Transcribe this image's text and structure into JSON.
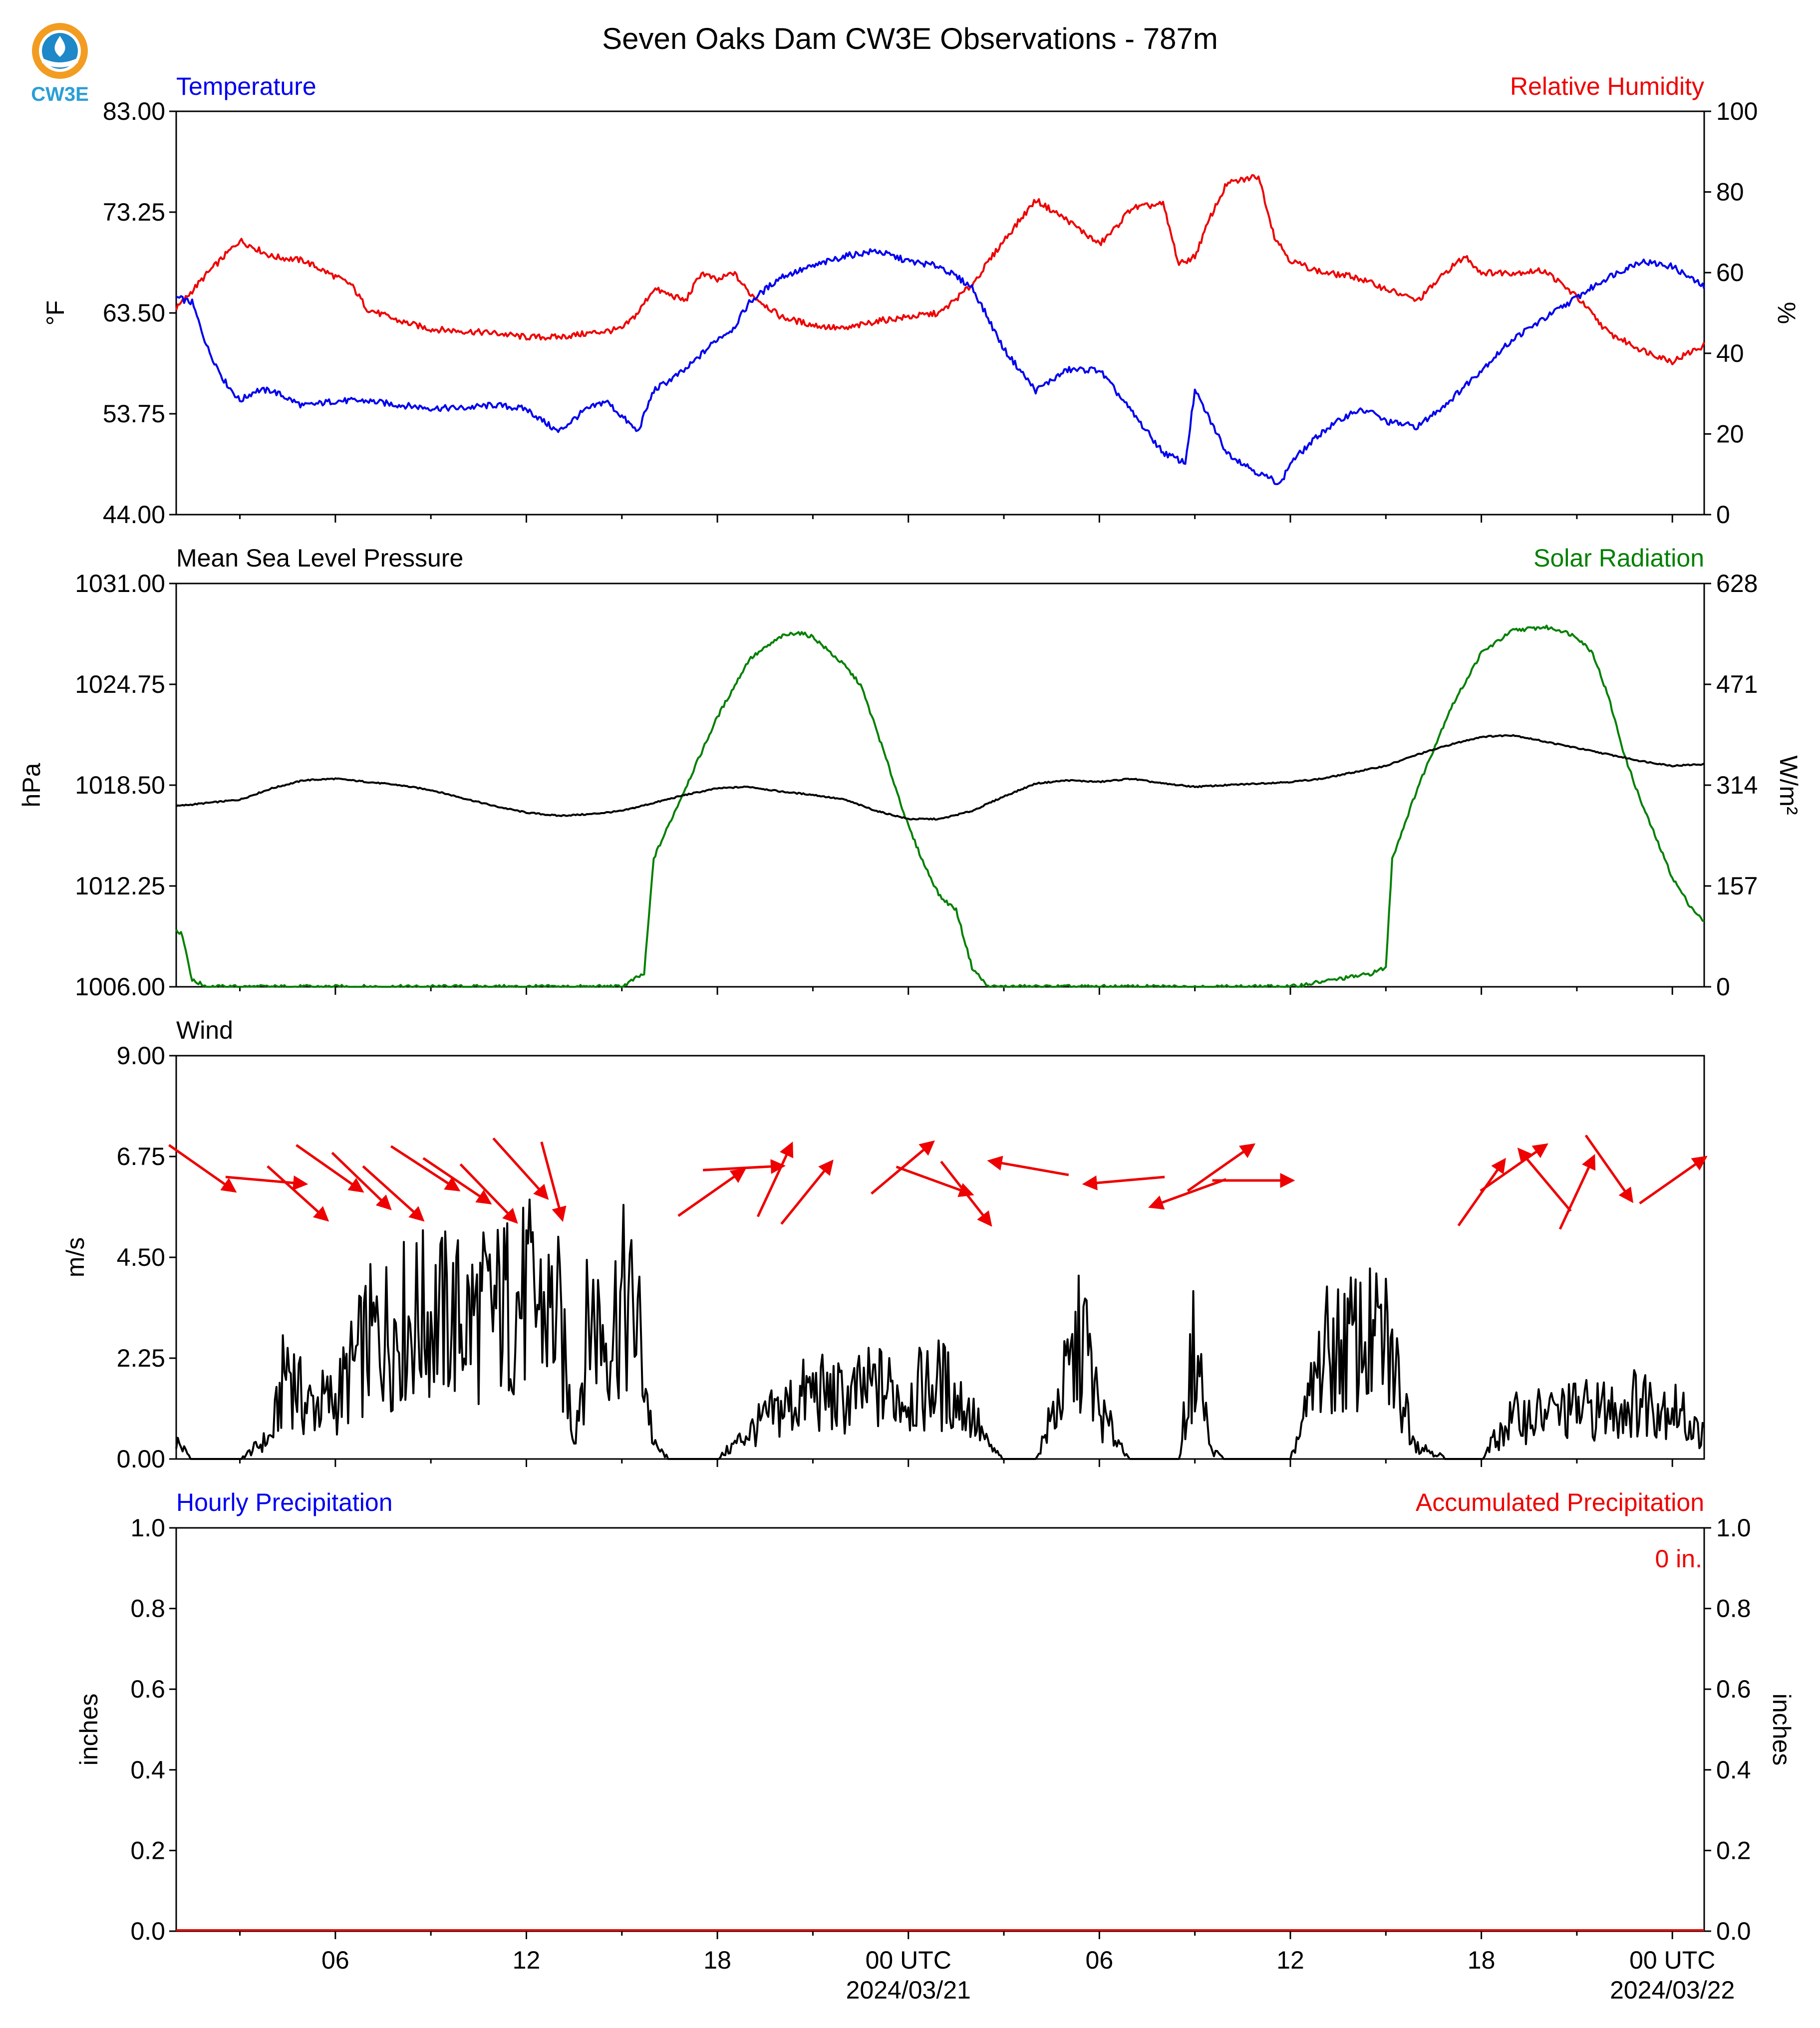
{
  "title": "Seven Oaks Dam CW3E Observations - 787m",
  "logo": {
    "text": "CW3E",
    "colors": [
      "#f39c22",
      "#1e88c8",
      "#2a9fd6"
    ]
  },
  "x_axis": {
    "tick_labels": [
      "06",
      "12",
      "18",
      "00 UTC",
      "06",
      "12",
      "18",
      "00 UTC"
    ],
    "date_labels": [
      "2024/03/21",
      "2024/03/22"
    ],
    "start": "2024-03-20T01:00Z",
    "end": "2024-03-22T01:00Z"
  },
  "panels": {
    "temperature": {
      "left_label": "Temperature",
      "right_label": "Relative Humidity",
      "left_unit": "°F",
      "right_unit": "%",
      "left_ticks": [
        "83.00",
        "73.25",
        "63.50",
        "53.75",
        "44.00"
      ],
      "right_ticks": [
        "100",
        "80",
        "60",
        "40",
        "20",
        "0"
      ],
      "colors": {
        "temperature": "#0000ee",
        "humidity": "#ee0000"
      }
    },
    "pressure": {
      "left_label": "Mean Sea Level Pressure",
      "right_label": "Solar Radiation",
      "left_unit": "hPa",
      "right_unit": "W/m²",
      "left_ticks": [
        "1031.00",
        "1024.75",
        "1018.50",
        "1012.25",
        "1006.00"
      ],
      "right_ticks": [
        "628",
        "471",
        "314",
        "157",
        "0"
      ],
      "colors": {
        "pressure": "#000000",
        "solar": "#008000"
      }
    },
    "wind": {
      "left_label": "Wind",
      "left_unit": "m/s",
      "left_ticks": [
        "9.00",
        "6.75",
        "4.50",
        "2.25",
        "0.00"
      ],
      "colors": {
        "speed": "#000000",
        "arrows": "#ee0000"
      }
    },
    "precip": {
      "left_label": "Hourly Precipitation",
      "right_label": "Accumulated Precipitation",
      "left_unit": "inches",
      "right_unit": "inches",
      "left_ticks": [
        "1.0",
        "0.8",
        "0.6",
        "0.4",
        "0.2",
        "0.0"
      ],
      "right_ticks": [
        "1.0",
        "0.8",
        "0.6",
        "0.4",
        "0.2",
        "0.0"
      ],
      "accum_text": "0 in.",
      "colors": {
        "hourly": "#0000ee",
        "accum": "#ee0000"
      }
    }
  },
  "chart_data": [
    {
      "type": "line",
      "panel": "temperature",
      "x_unit": "hours since 2024-03-20 01 UTC",
      "ylim_left": [
        44,
        83
      ],
      "ylim_right": [
        0,
        100
      ],
      "series": [
        {
          "name": "Temperature",
          "axis": "left",
          "unit": "°F",
          "x": [
            0,
            0.5,
            1,
            1.5,
            2,
            2.5,
            3,
            4,
            5,
            6,
            7,
            8,
            9,
            10,
            11,
            12,
            12.8,
            13.5,
            14.5,
            15,
            16,
            17,
            17.5,
            18,
            19,
            20,
            21,
            22,
            23,
            24,
            25,
            25.5,
            26,
            27,
            28,
            29,
            30,
            31,
            31.7,
            32,
            33,
            34,
            34.7,
            35,
            36,
            37,
            37.5,
            38,
            39,
            40,
            41,
            42,
            43,
            44,
            45,
            46,
            47,
            48
          ],
          "y": [
            65,
            64.5,
            60,
            57,
            55,
            56,
            56,
            54.5,
            55,
            55,
            54.6,
            54.3,
            54.3,
            54.6,
            54.2,
            52,
            54,
            55,
            52,
            56,
            58,
            61,
            62,
            64.5,
            67,
            68,
            69,
            69.5,
            68.5,
            68,
            66,
            63,
            60,
            56,
            58,
            58,
            54,
            50,
            49,
            56,
            50,
            48,
            47,
            49,
            52,
            54,
            54,
            53,
            52.5,
            55,
            58,
            61,
            63,
            65,
            67,
            68.5,
            68,
            66
          ]
        },
        {
          "name": "Relative Humidity",
          "axis": "right",
          "unit": "%",
          "x": [
            0,
            1,
            2,
            3,
            4,
            5,
            5.5,
            6,
            7,
            8,
            9,
            10,
            11,
            12,
            13,
            14,
            14.5,
            15,
            16,
            16.5,
            17,
            17.5,
            18,
            19,
            20,
            21,
            22,
            23,
            24,
            25,
            26,
            27,
            28,
            29,
            29.5,
            30,
            31,
            31.5,
            32,
            32.5,
            33,
            34,
            34.5,
            35,
            36,
            37,
            38,
            39,
            40,
            40.5,
            41,
            42,
            43,
            44,
            45,
            46,
            47,
            48
          ],
          "y": [
            51,
            60,
            68,
            64,
            63,
            59,
            57,
            51,
            48,
            46,
            45.5,
            45,
            44,
            44,
            45,
            46,
            50,
            56,
            53,
            60,
            58,
            60,
            55,
            49,
            47,
            46,
            48,
            49,
            50,
            57,
            68,
            78,
            73,
            67,
            71,
            76,
            77,
            62,
            64,
            74,
            82,
            84,
            69,
            63,
            60,
            59,
            56,
            53,
            61,
            64,
            60,
            60,
            60.5,
            54,
            45,
            41,
            38,
            42
          ]
        }
      ]
    },
    {
      "type": "line",
      "panel": "pressure",
      "x_unit": "hours since 2024-03-20 01 UTC",
      "ylim_left": [
        1006,
        1031
      ],
      "ylim_right": [
        0,
        628
      ],
      "series": [
        {
          "name": "Mean Sea Level Pressure",
          "axis": "left",
          "unit": "hPa",
          "x": [
            0,
            2,
            3,
            4,
            5,
            6,
            7,
            8,
            9,
            10,
            11,
            12,
            13,
            14,
            15,
            16,
            17,
            18,
            19,
            20,
            21,
            22,
            23,
            24,
            25,
            26,
            27,
            28,
            29,
            30,
            31,
            32,
            33,
            34,
            35,
            36,
            37,
            38,
            39,
            40,
            41,
            42,
            43,
            44,
            45,
            46,
            47,
            48
          ],
          "y": [
            1017.2,
            1017.6,
            1018.3,
            1018.8,
            1018.9,
            1018.7,
            1018.5,
            1018.2,
            1017.7,
            1017.2,
            1016.8,
            1016.6,
            1016.7,
            1016.9,
            1017.4,
            1017.9,
            1018.3,
            1018.4,
            1018.1,
            1017.9,
            1017.6,
            1016.9,
            1016.4,
            1016.4,
            1016.9,
            1017.8,
            1018.6,
            1018.8,
            1018.7,
            1018.9,
            1018.6,
            1018.4,
            1018.5,
            1018.6,
            1018.7,
            1018.9,
            1019.3,
            1019.7,
            1020.4,
            1021,
            1021.5,
            1021.6,
            1021.2,
            1020.8,
            1020.4,
            1020,
            1019.7,
            1019.8
          ]
        },
        {
          "name": "Solar Radiation",
          "axis": "right",
          "unit": "W/m²",
          "x": [
            0,
            0.2,
            0.5,
            1,
            5,
            10,
            14,
            14.5,
            14.7,
            15,
            16,
            17,
            18,
            19,
            19.5,
            20,
            21,
            21.5,
            22,
            23,
            23.5,
            24,
            24.5,
            25,
            25.5,
            26,
            30,
            35,
            37.5,
            38,
            38.2,
            39,
            40,
            41,
            42,
            43,
            43.5,
            44,
            44.5,
            45,
            45.5,
            46,
            47,
            47.5,
            48
          ],
          "y": [
            90,
            80,
            10,
            0,
            0,
            0,
            0,
            15,
            20,
            200,
            310,
            420,
            510,
            545,
            552,
            545,
            500,
            470,
            400,
            250,
            190,
            140,
            120,
            30,
            0,
            0,
            0,
            0,
            20,
            30,
            200,
            310,
            430,
            520,
            555,
            560,
            555,
            545,
            520,
            450,
            360,
            290,
            170,
            130,
            100
          ]
        }
      ]
    },
    {
      "type": "line",
      "panel": "wind",
      "x_unit": "hours since 2024-03-20 01 UTC",
      "ylim": [
        0,
        9
      ],
      "series": [
        {
          "name": "Wind",
          "unit": "m/s",
          "x": [
            0,
            0.5,
            1,
            2,
            3,
            3.5,
            4,
            5,
            6,
            7,
            8,
            9,
            10,
            11,
            12,
            12.5,
            13,
            13.5,
            14,
            14.5,
            15,
            15.5,
            16,
            17,
            18,
            19,
            20,
            21,
            22,
            23,
            24,
            25,
            25.5,
            26,
            27,
            28,
            28.5,
            29,
            30,
            31,
            31.5,
            32,
            32.5,
            33,
            34,
            35,
            35.5,
            36,
            37,
            38,
            39,
            40,
            40.5,
            41,
            41.5,
            42,
            43,
            44,
            45,
            46,
            47,
            47.5,
            48
          ],
          "y": [
            0.4,
            0,
            0,
            0,
            0.5,
            2.2,
            1.2,
            1.3,
            2.6,
            3.0,
            3.2,
            3.1,
            3.3,
            3.6,
            3.1,
            0.5,
            3.3,
            2.8,
            3.5,
            3.0,
            0.3,
            0,
            0,
            0,
            0.6,
            1.1,
            1.5,
            1.3,
            1.6,
            1.4,
            1.7,
            1.0,
            0.3,
            0,
            0,
            1.8,
            2.8,
            1.0,
            0,
            0,
            0,
            2.6,
            0.2,
            0,
            0,
            0,
            1.0,
            2.3,
            2.6,
            2.6,
            0.3,
            0,
            0,
            0,
            0.5,
            0.9,
            1.0,
            1.1,
            1.1,
            1.3,
            1.2,
            0.8,
            0.5
          ]
        }
      ],
      "direction_arrows": {
        "x": [
          0.8,
          2.8,
          3.8,
          4.8,
          5.8,
          6.8,
          7.8,
          8.8,
          9.8,
          10.8,
          11.8,
          16.8,
          17.8,
          18.8,
          19.8,
          22.8,
          23.8,
          24.8,
          26.8,
          29.8,
          31.8,
          32.8,
          33.8,
          41.0,
          42.0,
          43.0,
          44.0,
          45.0,
          47.0
        ],
        "dir_deg": [
          305,
          275,
          312,
          305,
          314,
          312,
          303,
          304,
          316,
          318,
          345,
          235,
          267,
          205,
          219,
          230,
          290,
          322,
          100,
          85,
          70,
          235,
          270,
          215,
          235,
          140,
          205,
          325,
          235
        ]
      }
    },
    {
      "type": "bar",
      "panel": "precip",
      "x_unit": "hours since 2024-03-20 01 UTC",
      "ylim": [
        0,
        1
      ],
      "series": [
        {
          "name": "Hourly Precipitation",
          "unit": "inches",
          "x": [
            0,
            48
          ],
          "values": [
            0,
            0
          ]
        },
        {
          "name": "Accumulated Precipitation",
          "unit": "inches",
          "x": [
            0,
            48
          ],
          "values": [
            0,
            0
          ]
        }
      ]
    }
  ]
}
